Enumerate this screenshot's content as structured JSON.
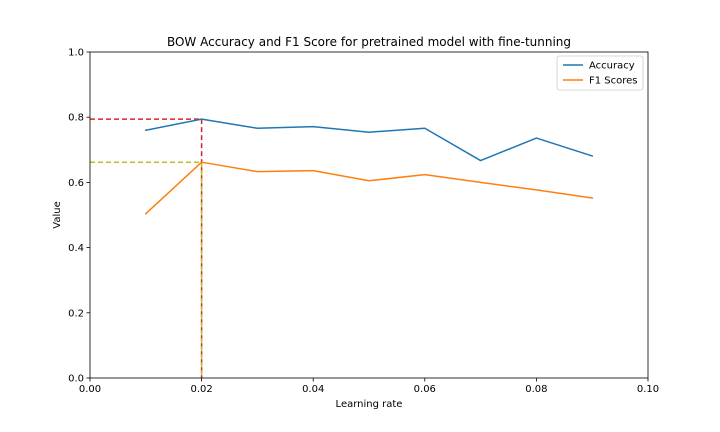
{
  "chart_data": {
    "type": "line",
    "title": "BOW Accuracy and F1 Score for pretrained model with fine-tunning",
    "xlabel": "Learning rate",
    "ylabel": "Value",
    "xlim": [
      0.0,
      0.1
    ],
    "ylim": [
      0.0,
      1.0
    ],
    "x_ticks": [
      "0.00",
      "0.02",
      "0.04",
      "0.06",
      "0.08",
      "0.10"
    ],
    "x_tick_values": [
      0.0,
      0.02,
      0.04,
      0.06,
      0.08,
      0.1
    ],
    "y_ticks": [
      "0.0",
      "0.2",
      "0.4",
      "0.6",
      "0.8",
      "1.0"
    ],
    "y_tick_values": [
      0.0,
      0.2,
      0.4,
      0.6,
      0.8,
      1.0
    ],
    "grid": false,
    "legend_position": "top-right",
    "x": [
      0.01,
      0.02,
      0.03,
      0.04,
      0.05,
      0.06,
      0.07,
      0.08,
      0.09
    ],
    "series": [
      {
        "name": "Accuracy",
        "color": "#1f77b4",
        "values": [
          0.76,
          0.794,
          0.766,
          0.771,
          0.754,
          0.766,
          0.667,
          0.736,
          0.681
        ]
      },
      {
        "name": "F1 Scores",
        "color": "#ff7f0e",
        "values": [
          0.504,
          0.662,
          0.633,
          0.636,
          0.605,
          0.624,
          0.6,
          0.577,
          0.552
        ]
      }
    ],
    "reference_lines": [
      {
        "color": "#d62728",
        "x": 0.02,
        "y": 0.794,
        "style": "dashed"
      },
      {
        "color": "#bcbd22",
        "x": 0.02,
        "y": 0.662,
        "style": "dashed"
      }
    ]
  }
}
